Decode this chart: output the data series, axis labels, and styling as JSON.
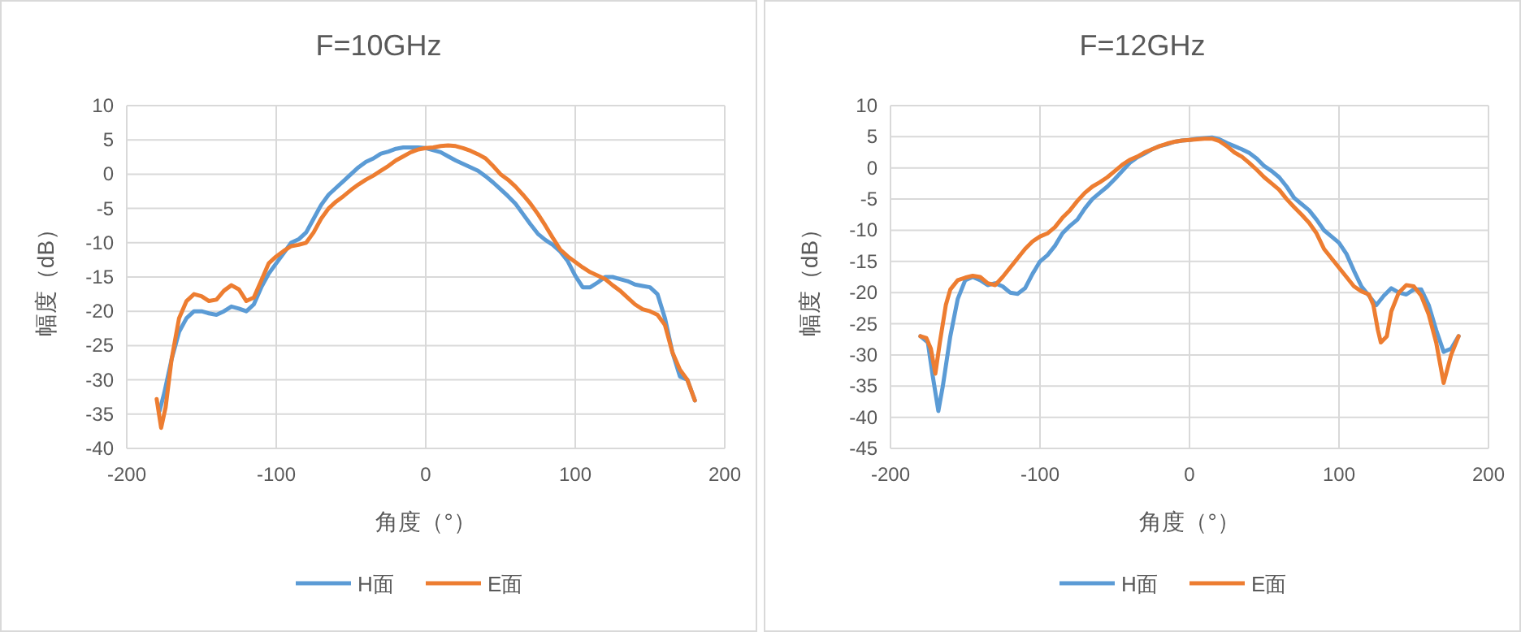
{
  "chart_data": [
    {
      "type": "line",
      "title": "F=10GHz",
      "xlabel": "角度（°）",
      "ylabel": "幅度（dB）",
      "xlim": [
        -200,
        200
      ],
      "xticks": [
        -200,
        -100,
        0,
        100,
        200
      ],
      "ylim": [
        -40,
        10
      ],
      "yticks": [
        -40,
        -35,
        -30,
        -25,
        -20,
        -15,
        -10,
        -5,
        0,
        5,
        10
      ],
      "grid": true,
      "legend": "bottom",
      "marker": "none",
      "line_style": "solid",
      "series": [
        {
          "name": "H面",
          "color": "#5b9bd5",
          "x": [
            -178,
            -175,
            -170,
            -165,
            -160,
            -155,
            -150,
            -145,
            -140,
            -135,
            -130,
            -125,
            -120,
            -115,
            -110,
            -105,
            -100,
            -95,
            -90,
            -85,
            -80,
            -75,
            -70,
            -65,
            -60,
            -55,
            -50,
            -45,
            -40,
            -35,
            -30,
            -25,
            -20,
            -15,
            -10,
            -5,
            0,
            5,
            10,
            15,
            20,
            25,
            30,
            35,
            40,
            45,
            50,
            55,
            60,
            65,
            70,
            75,
            80,
            85,
            90,
            95,
            100,
            105,
            110,
            115,
            120,
            125,
            130,
            135,
            140,
            145,
            150,
            155,
            160,
            165,
            170,
            175,
            180
          ],
          "values": [
            -34.5,
            -32,
            -27,
            -23,
            -21,
            -20,
            -20,
            -20.3,
            -20.5,
            -20,
            -19.3,
            -19.6,
            -20,
            -19,
            -16.5,
            -14.5,
            -13,
            -11.5,
            -10,
            -9.5,
            -8.5,
            -6.5,
            -4.5,
            -3,
            -2,
            -1,
            0,
            1,
            1.8,
            2.3,
            3,
            3.3,
            3.7,
            3.9,
            3.9,
            3.9,
            3.8,
            3.5,
            3.2,
            2.6,
            2,
            1.5,
            1,
            0.5,
            -0.3,
            -1.2,
            -2.2,
            -3.2,
            -4.3,
            -5.8,
            -7.3,
            -8.7,
            -9.6,
            -10.3,
            -11.3,
            -12.7,
            -14.8,
            -16.5,
            -16.5,
            -15.8,
            -15,
            -15,
            -15.3,
            -15.6,
            -16.1,
            -16.3,
            -16.5,
            -17.5,
            -21,
            -26,
            -29.5,
            -30,
            -33
          ]
        },
        {
          "name": "E面",
          "color": "#ed7d31",
          "x": [
            -180,
            -177,
            -174,
            -170,
            -165,
            -160,
            -155,
            -150,
            -145,
            -140,
            -135,
            -130,
            -125,
            -120,
            -115,
            -110,
            -105,
            -100,
            -95,
            -90,
            -85,
            -80,
            -75,
            -70,
            -65,
            -60,
            -55,
            -50,
            -45,
            -40,
            -35,
            -30,
            -25,
            -20,
            -15,
            -10,
            -5,
            0,
            5,
            10,
            15,
            20,
            25,
            30,
            35,
            40,
            45,
            50,
            55,
            60,
            65,
            70,
            75,
            80,
            85,
            90,
            95,
            100,
            105,
            110,
            115,
            120,
            125,
            130,
            135,
            140,
            145,
            150,
            155,
            160,
            165,
            170,
            175,
            180
          ],
          "values": [
            -32.8,
            -37,
            -34,
            -27,
            -21,
            -18.5,
            -17.5,
            -17.8,
            -18.5,
            -18.3,
            -17,
            -16.2,
            -16.8,
            -18.5,
            -18,
            -15.5,
            -13,
            -12,
            -11.2,
            -10.5,
            -10.3,
            -10,
            -8.5,
            -6.5,
            -5,
            -4,
            -3.2,
            -2.3,
            -1.5,
            -0.8,
            -0.2,
            0.5,
            1.2,
            2,
            2.6,
            3.2,
            3.6,
            3.8,
            3.9,
            4.1,
            4.2,
            4.1,
            3.8,
            3.4,
            2.9,
            2.3,
            1.2,
            0,
            -0.8,
            -1.8,
            -3,
            -4.3,
            -5.8,
            -7.5,
            -9.3,
            -11,
            -12,
            -12.8,
            -13.6,
            -14.3,
            -14.8,
            -15.3,
            -16.2,
            -17,
            -18,
            -19,
            -19.7,
            -20,
            -20.5,
            -22,
            -26,
            -28.5,
            -30,
            -33
          ]
        }
      ]
    },
    {
      "type": "line",
      "title": "F=12GHz",
      "xlabel": "角度（°）",
      "ylabel": "幅度（dB）",
      "xlim": [
        -200,
        200
      ],
      "xticks": [
        -200,
        -100,
        0,
        100,
        200
      ],
      "ylim": [
        -45,
        10
      ],
      "yticks": [
        -45,
        -40,
        -35,
        -30,
        -25,
        -20,
        -15,
        -10,
        -5,
        0,
        5,
        10
      ],
      "grid": true,
      "legend": "bottom",
      "marker": "none",
      "line_style": "solid",
      "series": [
        {
          "name": "H面",
          "color": "#5b9bd5",
          "x": [
            -180,
            -175,
            -172,
            -168,
            -165,
            -160,
            -155,
            -150,
            -145,
            -140,
            -135,
            -130,
            -125,
            -120,
            -115,
            -110,
            -105,
            -100,
            -95,
            -90,
            -85,
            -80,
            -75,
            -70,
            -65,
            -60,
            -55,
            -50,
            -45,
            -40,
            -35,
            -30,
            -25,
            -20,
            -15,
            -10,
            -5,
            0,
            5,
            10,
            15,
            20,
            25,
            30,
            35,
            40,
            45,
            50,
            55,
            60,
            65,
            70,
            75,
            80,
            85,
            90,
            95,
            100,
            105,
            110,
            115,
            120,
            125,
            130,
            135,
            140,
            145,
            150,
            155,
            160,
            165,
            170,
            175,
            180
          ],
          "values": [
            -27,
            -28,
            -33,
            -39,
            -35,
            -27,
            -21,
            -18,
            -17.5,
            -18,
            -18.8,
            -18.5,
            -19,
            -20,
            -20.2,
            -19.3,
            -17,
            -15,
            -14,
            -12.5,
            -10.5,
            -9.3,
            -8.3,
            -6.5,
            -5,
            -4,
            -3,
            -1.8,
            -0.5,
            0.8,
            1.7,
            2.3,
            3,
            3.5,
            3.8,
            4.2,
            4.4,
            4.5,
            4.7,
            4.8,
            4.9,
            4.6,
            4,
            3.5,
            3,
            2.4,
            1.5,
            0.3,
            -0.5,
            -1.5,
            -3,
            -4.8,
            -5.8,
            -6.8,
            -8.3,
            -10,
            -11,
            -12,
            -13.8,
            -16.5,
            -19,
            -20.5,
            -22,
            -20.5,
            -19.3,
            -20,
            -20.3,
            -19.5,
            -19.5,
            -22,
            -26,
            -29.5,
            -29,
            -27
          ]
        },
        {
          "name": "E面",
          "color": "#ed7d31",
          "x": [
            -180,
            -176,
            -173,
            -170,
            -167,
            -163,
            -160,
            -155,
            -150,
            -145,
            -140,
            -135,
            -130,
            -125,
            -120,
            -115,
            -110,
            -105,
            -100,
            -95,
            -90,
            -85,
            -80,
            -75,
            -70,
            -65,
            -60,
            -55,
            -50,
            -45,
            -40,
            -35,
            -30,
            -25,
            -20,
            -15,
            -10,
            -5,
            0,
            5,
            10,
            15,
            20,
            25,
            30,
            35,
            40,
            45,
            50,
            55,
            60,
            65,
            70,
            75,
            80,
            85,
            90,
            95,
            100,
            105,
            110,
            115,
            120,
            123,
            126,
            128,
            132,
            135,
            140,
            145,
            150,
            155,
            160,
            165,
            170,
            175,
            180
          ],
          "values": [
            -27,
            -27.3,
            -29,
            -33,
            -28,
            -22,
            -19.5,
            -18,
            -17.6,
            -17.3,
            -17.5,
            -18.5,
            -18.8,
            -17.5,
            -16,
            -14.5,
            -13,
            -11.8,
            -11,
            -10.5,
            -9.5,
            -8,
            -6.8,
            -5.3,
            -4,
            -3,
            -2.3,
            -1.5,
            -0.5,
            0.5,
            1.3,
            1.8,
            2.5,
            3,
            3.5,
            3.9,
            4.2,
            4.4,
            4.5,
            4.6,
            4.7,
            4.7,
            4.3,
            3.5,
            2.5,
            1.8,
            0.8,
            -0.3,
            -1.5,
            -2.5,
            -3.5,
            -5,
            -6.3,
            -7.5,
            -8.8,
            -10.5,
            -13,
            -14.5,
            -16,
            -17.5,
            -19,
            -19.8,
            -20.3,
            -22,
            -26,
            -28,
            -27,
            -23,
            -20,
            -18.8,
            -19,
            -20.5,
            -23.5,
            -28,
            -34.5,
            -30,
            -27
          ]
        }
      ]
    }
  ]
}
